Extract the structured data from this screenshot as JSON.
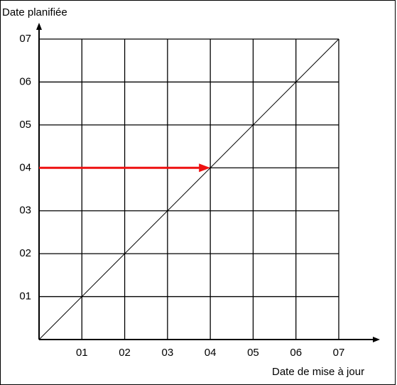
{
  "chart_data": {
    "type": "line",
    "y_label": "Date planifiée",
    "x_label": "Date de mise à jour",
    "xlim": [
      0,
      7
    ],
    "ylim": [
      0,
      7
    ],
    "xticks": [
      {
        "value": 1,
        "label": "01"
      },
      {
        "value": 2,
        "label": "02"
      },
      {
        "value": 3,
        "label": "03"
      },
      {
        "value": 4,
        "label": "04"
      },
      {
        "value": 5,
        "label": "05"
      },
      {
        "value": 6,
        "label": "06"
      },
      {
        "value": 7,
        "label": "07"
      }
    ],
    "yticks": [
      {
        "value": 1,
        "label": "01"
      },
      {
        "value": 2,
        "label": "02"
      },
      {
        "value": 3,
        "label": "03"
      },
      {
        "value": 4,
        "label": "04"
      },
      {
        "value": 5,
        "label": "05"
      },
      {
        "value": 6,
        "label": "06"
      },
      {
        "value": 7,
        "label": "07"
      }
    ],
    "grid": true,
    "series": [
      {
        "color": "#000000",
        "x": [
          0,
          7
        ],
        "values": [
          0,
          7
        ]
      },
      {
        "color": "#ee1111",
        "x": [
          0,
          4
        ],
        "values": [
          4,
          4
        ],
        "arrow": true
      }
    ]
  }
}
